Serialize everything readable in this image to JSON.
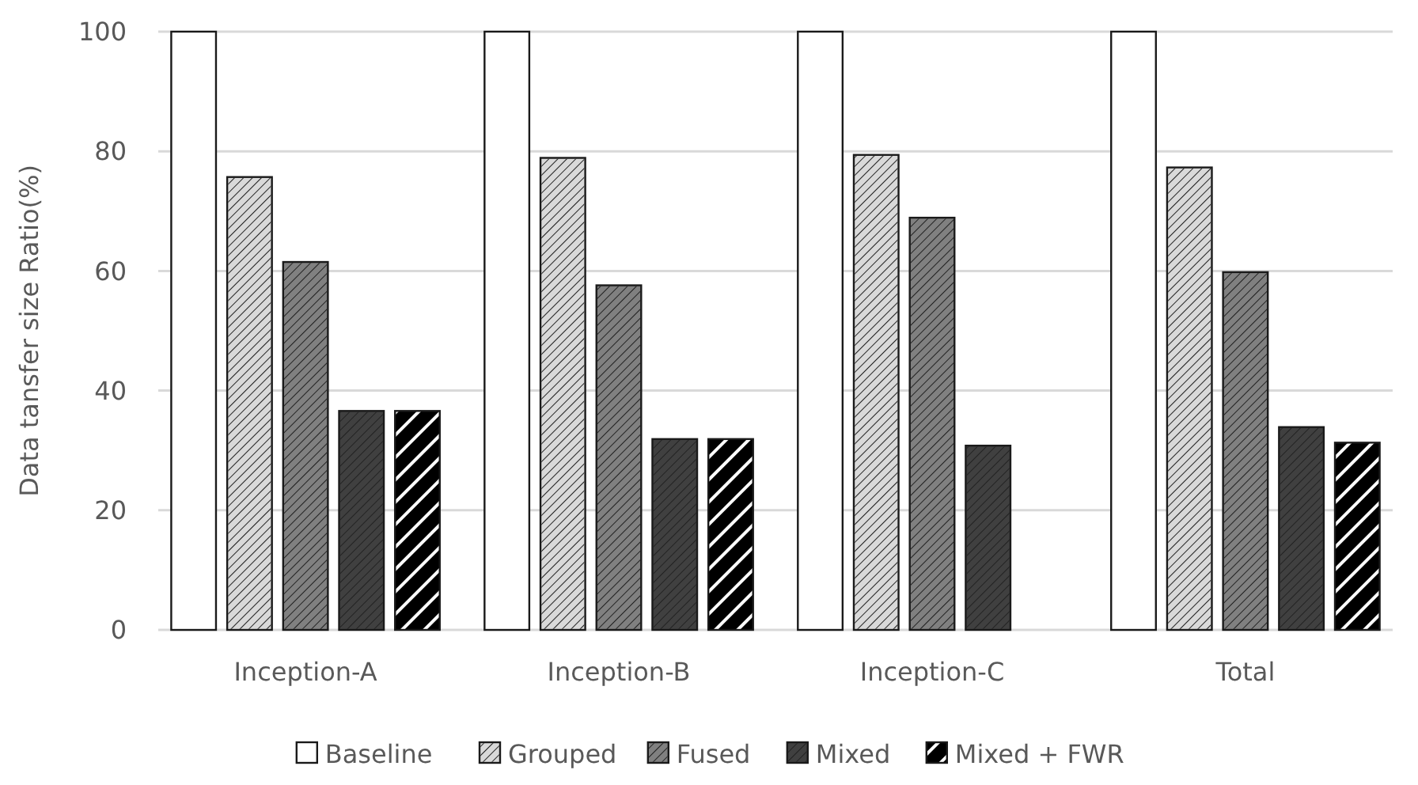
{
  "chart_data": {
    "type": "bar",
    "ylabel": "Data tansfer size Ratio(%)",
    "categories": [
      "Inception-A",
      "Inception-B",
      "Inception-C",
      "Total"
    ],
    "series": [
      {
        "name": "Baseline",
        "color": "#ffffff",
        "values": [
          100,
          100,
          100,
          100
        ]
      },
      {
        "name": "Grouped",
        "color": "#d9d9d9",
        "values": [
          75.7,
          78.9,
          79.4,
          77.3
        ]
      },
      {
        "name": "Fused",
        "color": "#808080",
        "values": [
          61.5,
          57.6,
          68.9,
          59.8
        ]
      },
      {
        "name": "Mixed",
        "color": "#404040",
        "values": [
          36.6,
          31.9,
          30.8,
          33.9
        ]
      },
      {
        "name": "Mixed + FWR",
        "color": "#000000",
        "values": [
          36.6,
          31.9,
          null,
          31.3
        ]
      }
    ],
    "ylim": [
      0,
      100
    ],
    "yticks": [
      0,
      20,
      40,
      60,
      80,
      100
    ],
    "grid": "y",
    "legend": "bottom"
  }
}
